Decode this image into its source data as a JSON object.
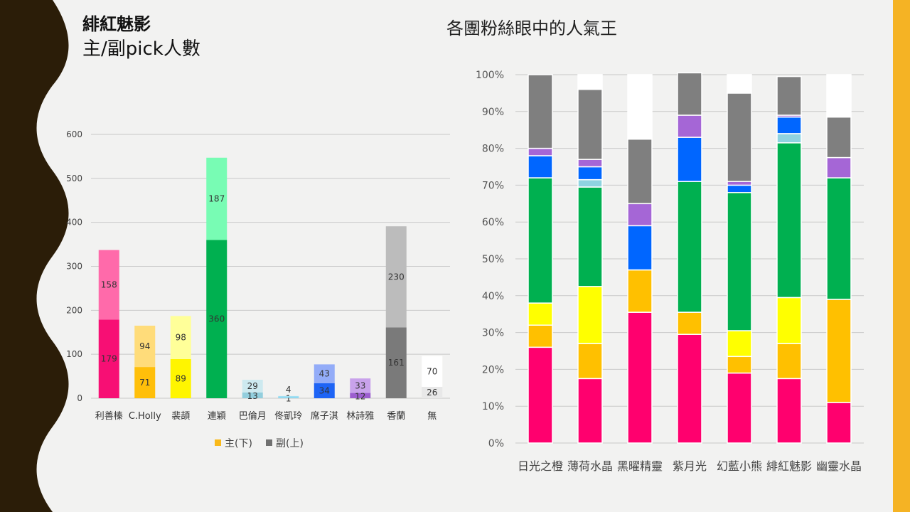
{
  "header": {
    "title": "緋紅魅影",
    "subtitle": "主/副pick人數",
    "right_title": "各團粉絲眼中的人氣王"
  },
  "colors": {
    "bg": "#f2f2f1",
    "dark": "#2b1d08",
    "accent": "#f5b324"
  },
  "chart_data": [
    {
      "type": "bar",
      "stacked": true,
      "title": "",
      "categories": [
        "利善榛",
        "C.Holly",
        "裴頡",
        "連穎",
        "巴倫月",
        "佟凱玲",
        "席子淇",
        "林詩雅",
        "香蘭",
        "無"
      ],
      "ylim": [
        0,
        600
      ],
      "yticks": [
        0,
        100,
        200,
        300,
        400,
        500,
        600
      ],
      "grid": true,
      "legend": "bottom",
      "series": [
        {
          "name": "主(下)",
          "legend_color": "#f9b91a",
          "values": [
            179,
            71,
            89,
            360,
            13,
            1,
            34,
            12,
            161,
            26
          ],
          "colors": [
            "#f70f74",
            "#ffbf0a",
            "#fff500",
            "#00b050",
            "#93cedd",
            "#5bc3e8",
            "#1e64f5",
            "#9c5ecf",
            "#7a7a7a",
            "#e8e8e8"
          ]
        },
        {
          "name": "副(上)",
          "legend_color": "#707070",
          "values": [
            158,
            94,
            98,
            187,
            29,
            4,
            43,
            33,
            230,
            70
          ],
          "colors": [
            "#ff6aaa",
            "#ffdc7a",
            "#ffff99",
            "#78fcb4",
            "#cde9ef",
            "#a3dff2",
            "#93acf8",
            "#c8a2eb",
            "#bcbcbc",
            "#ffffff"
          ]
        }
      ]
    },
    {
      "type": "bar",
      "stacked": true,
      "percent": true,
      "title": "",
      "categories": [
        "日光之橙",
        "薄荷水晶",
        "黑曜精靈",
        "紫月光",
        "幻藍小熊",
        "緋紅魅影",
        "幽靈水晶"
      ],
      "ylim": [
        0,
        100
      ],
      "yticks": [
        "0%",
        "10%",
        "20%",
        "30%",
        "40%",
        "50%",
        "60%",
        "70%",
        "80%",
        "90%",
        "100%"
      ],
      "grid": true,
      "series": [
        {
          "color": "#ff006e",
          "values": [
            26,
            17.5,
            35.5,
            29.5,
            19,
            17.5,
            11
          ]
        },
        {
          "color": "#ffc000",
          "values": [
            6,
            9.5,
            11.5,
            6,
            4.5,
            9.5,
            28
          ]
        },
        {
          "color": "#ffff00",
          "values": [
            6,
            15.5,
            0,
            0,
            7,
            12.5,
            0
          ]
        },
        {
          "color": "#00b050",
          "values": [
            34,
            27,
            0,
            35.5,
            37.5,
            42,
            33
          ]
        },
        {
          "color": "#8fd3e0",
          "values": [
            0,
            2,
            0,
            0,
            0,
            2.5,
            0
          ]
        },
        {
          "color": "#0066ff",
          "values": [
            6,
            3.5,
            12,
            12,
            2,
            4.5,
            0
          ]
        },
        {
          "color": "#a566d6",
          "values": [
            2,
            2,
            6,
            6,
            1,
            0.5,
            5.5
          ]
        },
        {
          "color": "#7f7f7f",
          "values": [
            20,
            19,
            17.5,
            11.5,
            24,
            10.5,
            11
          ]
        },
        {
          "color": "#ffffff",
          "values": [
            0,
            4,
            17.5,
            0,
            5,
            0,
            11.5
          ]
        }
      ]
    }
  ]
}
